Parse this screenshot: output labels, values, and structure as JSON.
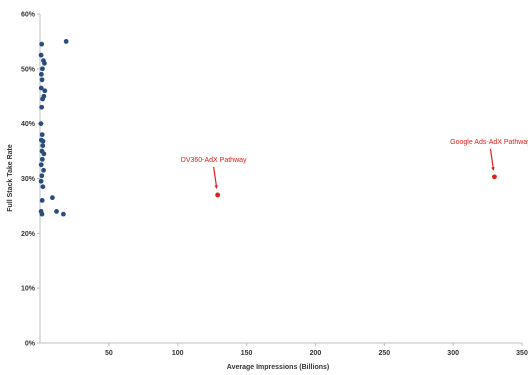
{
  "chart_data": {
    "type": "scatter",
    "title": "",
    "xlabel": "Average Impressions (Billions)",
    "ylabel": "Full Stack Take Rate",
    "xlim": [
      0,
      350
    ],
    "ylim": [
      0,
      60
    ],
    "x_ticks": [
      "50",
      "100",
      "150",
      "200",
      "250",
      "300",
      "350"
    ],
    "y_ticks": [
      "0%",
      "10%",
      "20%",
      "30%",
      "40%",
      "50%",
      "60%"
    ],
    "grid": false,
    "colors": {
      "points": "#2a4d7f",
      "highlight": "#e0201b",
      "axis": "#bfbfbf",
      "text": "#333333"
    },
    "series": [
      {
        "points": [
          [
            1.2,
            54.5
          ],
          [
            0.8,
            52.5
          ],
          [
            2.5,
            51.5
          ],
          [
            3.2,
            51.0
          ],
          [
            1.8,
            50.0
          ],
          [
            1.0,
            49.0
          ],
          [
            1.5,
            48.0
          ],
          [
            0.9,
            46.5
          ],
          [
            3.5,
            46.0
          ],
          [
            2.8,
            45.0
          ],
          [
            1.9,
            44.5
          ],
          [
            1.2,
            43.0
          ],
          [
            0.7,
            40.0
          ],
          [
            1.6,
            38.0
          ],
          [
            1.0,
            37.0
          ],
          [
            2.2,
            36.8
          ],
          [
            2.0,
            36.0
          ],
          [
            1.4,
            35.0
          ],
          [
            2.8,
            34.5
          ],
          [
            1.7,
            33.5
          ],
          [
            0.9,
            32.5
          ],
          [
            2.6,
            31.5
          ],
          [
            1.3,
            30.5
          ],
          [
            0.8,
            29.5
          ],
          [
            2.1,
            28.5
          ],
          [
            1.6,
            26.0
          ],
          [
            0.8,
            24.0
          ],
          [
            1.4,
            23.5
          ],
          [
            9.0,
            26.5
          ],
          [
            12.0,
            24.0
          ],
          [
            17.0,
            23.5
          ],
          [
            19.0,
            55.0
          ]
        ]
      },
      {
        "name": "DV360-AdX Pathway",
        "points": [
          [
            129,
            27.0
          ]
        ]
      },
      {
        "name": "Google Ads-AdX Pathway",
        "points": [
          [
            330,
            30.3
          ]
        ]
      }
    ],
    "annotations": [
      {
        "text": "DV360-AdX Pathway",
        "x": 129,
        "y": 27.0
      },
      {
        "text": "Google Ads-AdX Pathway",
        "x": 330,
        "y": 30.3
      }
    ]
  }
}
